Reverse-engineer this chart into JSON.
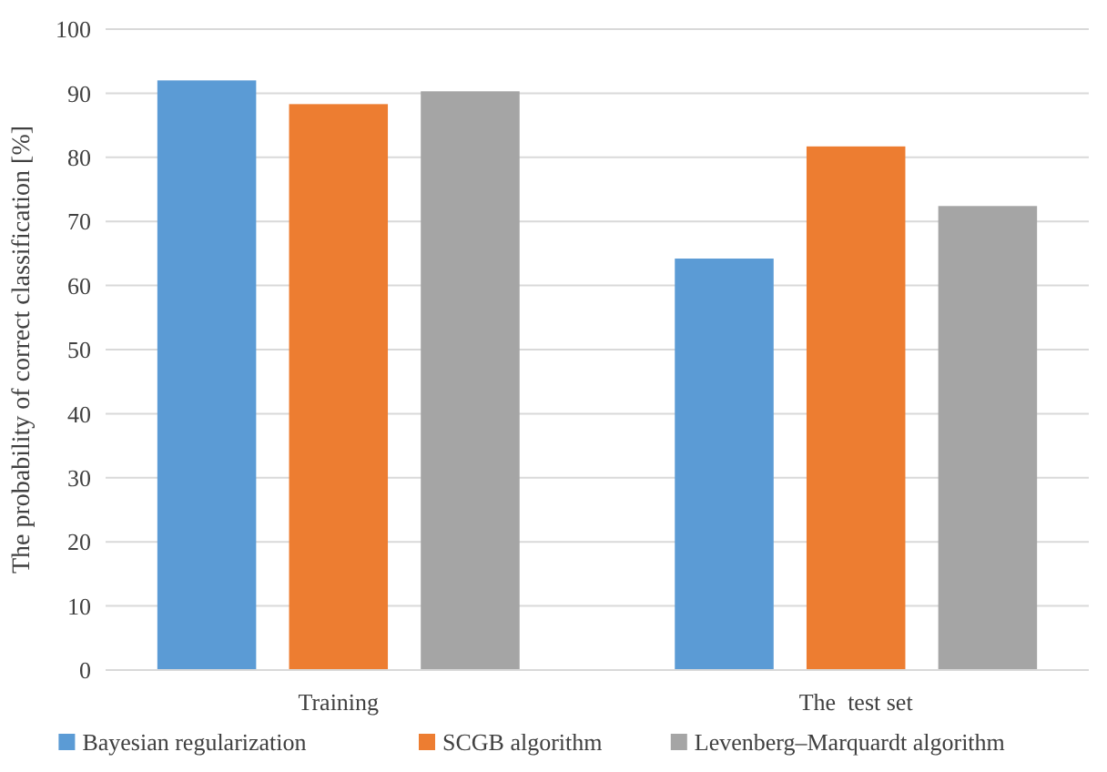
{
  "chart_data": {
    "type": "bar",
    "ylabel": "The probability of correct classification [%]",
    "categories": [
      "Training",
      "The  test set"
    ],
    "series": [
      {
        "name": "Bayesian regularization",
        "color": "#5b9bd5",
        "values": [
          92,
          64.2
        ]
      },
      {
        "name": "SCGB algorithm",
        "color": "#ed7d31",
        "values": [
          88.3,
          81.7
        ]
      },
      {
        "name": "Levenberg–Marquardt algorithm",
        "color": "#a5a5a5",
        "values": [
          90.3,
          72.4
        ]
      }
    ],
    "ylim": [
      0,
      100
    ],
    "yticks": [
      0,
      10,
      20,
      30,
      40,
      50,
      60,
      70,
      80,
      90,
      100
    ],
    "grid": "y",
    "legend": "bottom"
  }
}
